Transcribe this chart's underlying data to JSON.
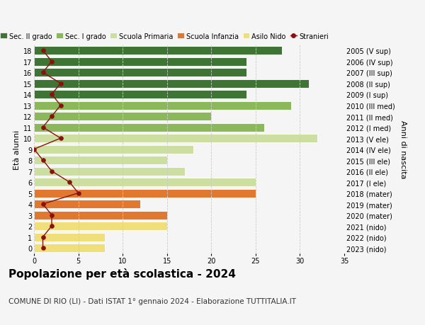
{
  "ages": [
    0,
    1,
    2,
    3,
    4,
    5,
    6,
    7,
    8,
    9,
    10,
    11,
    12,
    13,
    14,
    15,
    16,
    17,
    18
  ],
  "years": [
    "2023 (nido)",
    "2022 (nido)",
    "2021 (nido)",
    "2020 (mater)",
    "2019 (mater)",
    "2018 (mater)",
    "2017 (I ele)",
    "2016 (II ele)",
    "2015 (III ele)",
    "2014 (IV ele)",
    "2013 (V ele)",
    "2012 (I med)",
    "2011 (II med)",
    "2010 (III med)",
    "2009 (I sup)",
    "2008 (II sup)",
    "2007 (III sup)",
    "2006 (IV sup)",
    "2005 (V sup)"
  ],
  "bar_values": [
    8,
    8,
    15,
    15,
    12,
    25,
    25,
    17,
    15,
    18,
    32,
    26,
    20,
    29,
    24,
    31,
    24,
    24,
    28
  ],
  "bar_colors": [
    "#f0de7a",
    "#f0de7a",
    "#f0de7a",
    "#e07830",
    "#e07830",
    "#e07830",
    "#ccdea0",
    "#ccdea0",
    "#ccdea0",
    "#ccdea0",
    "#ccdea0",
    "#8ab85a",
    "#8ab85a",
    "#8ab85a",
    "#3e7535",
    "#3e7535",
    "#3e7535",
    "#3e7535",
    "#3e7535"
  ],
  "stranieri_x": [
    1,
    1,
    2,
    2,
    1,
    5,
    4,
    2,
    1,
    0,
    3,
    1,
    2,
    3,
    2,
    3,
    1,
    2,
    1
  ],
  "ylabel_left": "Età alunni",
  "ylabel_right": "Anni di nascita",
  "xlim": [
    0,
    35
  ],
  "xticks": [
    0,
    5,
    10,
    15,
    20,
    25,
    30,
    35
  ],
  "title": "Popolazione per età scolastica - 2024",
  "subtitle": "COMUNE DI RIO (LI) - Dati ISTAT 1° gennaio 2024 - Elaborazione TUTTITALIA.IT",
  "legend_labels": [
    "Sec. II grado",
    "Sec. I grado",
    "Scuola Primaria",
    "Scuola Infanzia",
    "Asilo Nido",
    "Stranieri"
  ],
  "legend_colors": [
    "#3e7535",
    "#8ab85a",
    "#ccdea0",
    "#e07830",
    "#f0de7a",
    "#8b1010"
  ],
  "bg_color": "#f5f5f5",
  "grid_color": "#cccccc",
  "bar_height": 0.78,
  "title_fontsize": 11,
  "subtitle_fontsize": 7.5,
  "tick_fontsize": 7,
  "label_fontsize": 8,
  "legend_fontsize": 7
}
